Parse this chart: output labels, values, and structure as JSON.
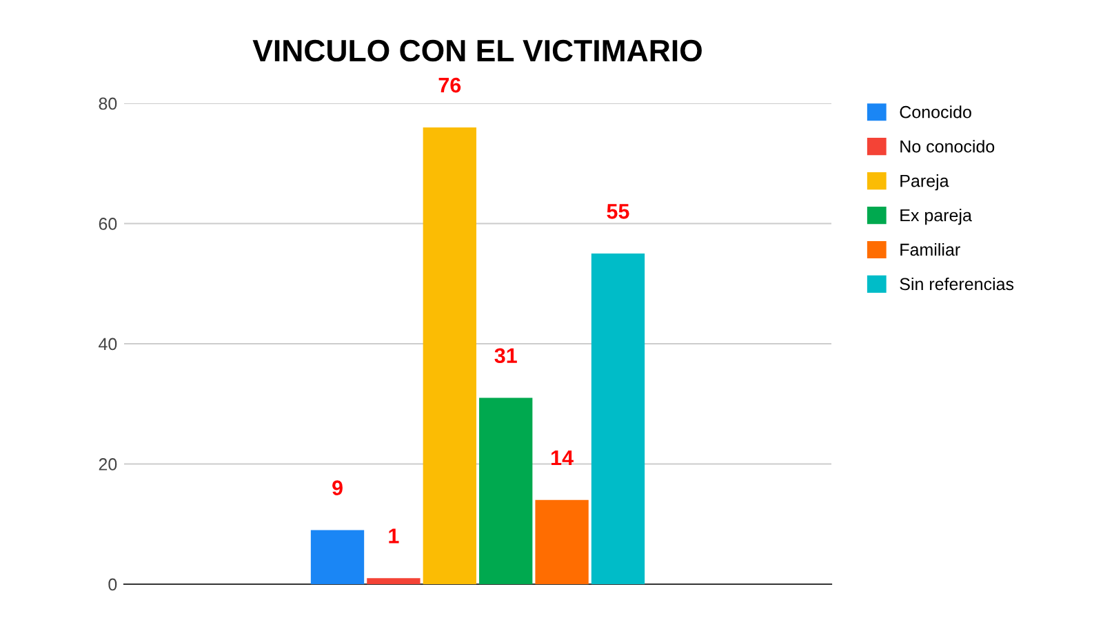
{
  "chart_data": {
    "type": "bar",
    "title": "VINCULO CON EL VICTIMARIO",
    "categories": [
      null
    ],
    "series": [
      {
        "name": "Conocido",
        "color": "#1a86f5",
        "values": [
          9
        ]
      },
      {
        "name": "No conocido",
        "color": "#f44336",
        "values": [
          1
        ]
      },
      {
        "name": "Pareja",
        "color": "#fbbc04",
        "values": [
          76
        ]
      },
      {
        "name": "Ex pareja",
        "color": "#00a94f",
        "values": [
          31
        ]
      },
      {
        "name": "Familiar",
        "color": "#ff6d01",
        "values": [
          14
        ]
      },
      {
        "name": "Sin referencias",
        "color": "#00bcc8",
        "values": [
          55
        ]
      }
    ],
    "ylim": [
      0,
      80
    ],
    "yticks": [
      0,
      20,
      40,
      60,
      80
    ],
    "grid": "y",
    "legend": "right",
    "data_labels": true,
    "tick_labels": "y"
  }
}
